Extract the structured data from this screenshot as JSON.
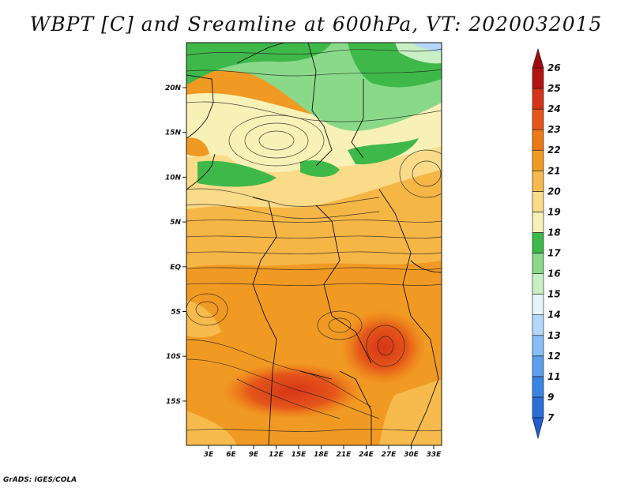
{
  "title": "WBPT [C] and Sreamline at 600hPa, VT: 2020032015",
  "footer": "GrADS: IGES/COLA",
  "lat_labels": [
    "20N",
    "15N",
    "10N",
    "5N",
    "EQ",
    "5S",
    "10S",
    "15S"
  ],
  "lon_labels": [
    "3E",
    "6E",
    "9E",
    "12E",
    "15E",
    "18E",
    "21E",
    "24E",
    "27E",
    "30E",
    "33E"
  ],
  "colorbar": {
    "levels": [
      "7",
      "9",
      "11",
      "12",
      "13",
      "14",
      "15",
      "16",
      "17",
      "18",
      "19",
      "20",
      "21",
      "22",
      "23",
      "24",
      "25",
      "26"
    ],
    "colors": [
      "#2b6fd6",
      "#3a85e4",
      "#5f9ff0",
      "#88bdf6",
      "#b3d7fa",
      "#e4f4fb",
      "#c8f0c4",
      "#8ad989",
      "#3fb84a",
      "#f7f1b7",
      "#f9db89",
      "#f6bb4c",
      "#f19a23",
      "#ed7816",
      "#e5561a",
      "#d63418",
      "#b51212"
    ]
  }
}
